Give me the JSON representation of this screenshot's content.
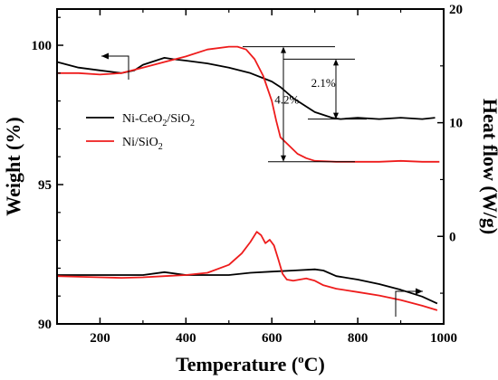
{
  "chart_data": {
    "type": "line",
    "xlabel": "Temperature (°C)",
    "xlabel_parts": {
      "before": "Temperature (",
      "sup": "o",
      "after": "C)"
    },
    "ylabel_left": "Weight (%)",
    "ylabel_right": "Heat flow (W/g)",
    "xlim": [
      100,
      1000
    ],
    "ylim_left": [
      90,
      101.3
    ],
    "ylim_right": [
      -7.7,
      20
    ],
    "x_ticks": [
      200,
      400,
      600,
      800,
      1000
    ],
    "y_left_ticks": [
      90,
      95,
      100
    ],
    "y_right_ticks": [
      0,
      10,
      20
    ],
    "grid": false,
    "legend_position": "center-left",
    "series": [
      {
        "name": "Ni-CeO2/SiO2",
        "legend": {
          "parts": [
            "Ni-CeO",
            "2",
            "/SiO",
            "2"
          ]
        },
        "color": "#000000",
        "axis": "left",
        "x": [
          100,
          150,
          200,
          250,
          280,
          300,
          330,
          350,
          370,
          400,
          450,
          500,
          550,
          600,
          620,
          650,
          680,
          700,
          720,
          740,
          760,
          800,
          850,
          900,
          950,
          980
        ],
        "y": [
          99.4,
          99.2,
          99.1,
          99.0,
          99.1,
          99.3,
          99.45,
          99.55,
          99.5,
          99.45,
          99.35,
          99.2,
          99.0,
          98.7,
          98.5,
          98.1,
          97.8,
          97.6,
          97.5,
          97.4,
          97.35,
          97.4,
          97.35,
          97.4,
          97.35,
          97.4
        ]
      },
      {
        "name": "Ni/SiO2",
        "legend": {
          "parts": [
            "Ni/SiO",
            "2"
          ]
        },
        "color": "#ee1c1c",
        "axis": "left",
        "x": [
          100,
          150,
          200,
          250,
          300,
          350,
          400,
          450,
          500,
          520,
          540,
          560,
          580,
          600,
          610,
          620,
          640,
          660,
          680,
          700,
          750,
          800,
          850,
          900,
          950,
          990
        ],
        "y": [
          99.0,
          99.0,
          98.95,
          99.0,
          99.2,
          99.4,
          99.6,
          99.85,
          99.95,
          99.95,
          99.85,
          99.5,
          98.9,
          98.0,
          97.3,
          96.7,
          96.4,
          96.1,
          95.95,
          95.85,
          95.82,
          95.82,
          95.82,
          95.85,
          95.82,
          95.82
        ]
      },
      {
        "name": "Ni-CeO2/SiO2 heat flow",
        "color": "#000000",
        "axis": "right",
        "x": [
          100,
          200,
          300,
          350,
          400,
          450,
          500,
          550,
          600,
          650,
          700,
          720,
          750,
          800,
          850,
          900,
          950,
          985
        ],
        "y": [
          -3.4,
          -3.4,
          -3.4,
          -3.15,
          -3.4,
          -3.4,
          -3.4,
          -3.2,
          -3.1,
          -3.0,
          -2.9,
          -3.0,
          -3.5,
          -3.8,
          -4.2,
          -4.7,
          -5.3,
          -5.9
        ]
      },
      {
        "name": "Ni/SiO2 heat flow",
        "color": "#ee1c1c",
        "axis": "right",
        "x": [
          100,
          150,
          200,
          250,
          300,
          350,
          400,
          450,
          500,
          530,
          550,
          565,
          575,
          585,
          595,
          605,
          615,
          625,
          635,
          650,
          680,
          700,
          720,
          750,
          800,
          850,
          900,
          950,
          985
        ],
        "y": [
          -3.5,
          -3.55,
          -3.6,
          -3.65,
          -3.6,
          -3.5,
          -3.4,
          -3.2,
          -2.5,
          -1.5,
          -0.5,
          0.4,
          0.1,
          -0.6,
          -0.3,
          -0.8,
          -2.0,
          -3.3,
          -3.8,
          -3.9,
          -3.7,
          -3.9,
          -4.3,
          -4.6,
          -4.9,
          -5.2,
          -5.6,
          -6.1,
          -6.5
        ]
      }
    ],
    "annotations": [
      {
        "text": "2.1%",
        "x": 720,
        "y": 98.5
      },
      {
        "text": "4.2%",
        "x": 635,
        "y": 97.9
      }
    ],
    "legend_order": [
      "Ni-CeO2/SiO2",
      "Ni/SiO2"
    ]
  }
}
